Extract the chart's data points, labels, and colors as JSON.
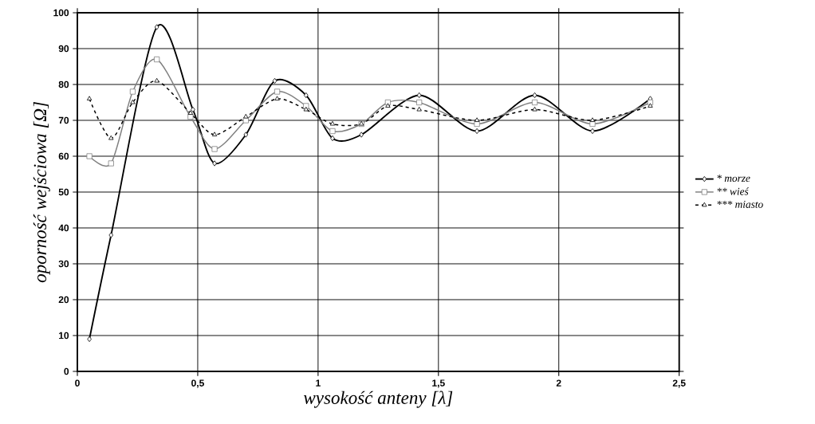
{
  "chart_data": {
    "type": "line",
    "xlabel": "wysokość anteny [λ]",
    "ylabel": "oporność wejściowa [Ω]",
    "xlim": [
      0,
      2.5
    ],
    "ylim": [
      0,
      100
    ],
    "xticks": [
      0,
      {
        "value": 0.5,
        "label": "0,5"
      },
      1,
      {
        "value": 1.5,
        "label": "1,5"
      },
      2,
      {
        "value": 2.5,
        "label": "2,5"
      }
    ],
    "yticks": [
      0,
      10,
      20,
      30,
      40,
      50,
      60,
      70,
      80,
      90,
      100
    ],
    "grid": true,
    "legend": "right",
    "series": [
      {
        "name": "* morze",
        "color": "#000000",
        "marker": "diamond",
        "line_style": "solid",
        "x": [
          0.05,
          0.14,
          0.33,
          0.48,
          0.57,
          0.7,
          0.82,
          0.95,
          1.06,
          1.18,
          1.42,
          1.66,
          1.9,
          2.14,
          2.38
        ],
        "values": [
          9,
          38,
          96,
          73,
          58,
          66,
          81,
          77,
          65,
          66,
          77,
          67,
          77,
          67,
          76
        ]
      },
      {
        "name": "** wieś",
        "color": "#808080",
        "marker": "square",
        "line_style": "solid",
        "x": [
          0.05,
          0.14,
          0.23,
          0.33,
          0.47,
          0.57,
          0.7,
          0.83,
          0.95,
          1.06,
          1.18,
          1.29,
          1.42,
          1.66,
          1.9,
          2.14,
          2.38
        ],
        "values": [
          60,
          58,
          78,
          87,
          71,
          62,
          70,
          78,
          74,
          67,
          69,
          75,
          75,
          69,
          75,
          69,
          75
        ]
      },
      {
        "name": "*** miasto",
        "color": "#000000",
        "marker": "triangle",
        "line_style": "dashed",
        "x": [
          0.05,
          0.14,
          0.23,
          0.33,
          0.47,
          0.57,
          0.7,
          0.83,
          0.95,
          1.06,
          1.18,
          1.29,
          1.42,
          1.66,
          1.9,
          2.14,
          2.38
        ],
        "values": [
          76,
          65,
          75,
          81,
          72,
          66,
          71,
          76,
          73,
          69,
          69,
          74,
          73,
          70,
          73,
          70,
          74
        ]
      }
    ]
  }
}
